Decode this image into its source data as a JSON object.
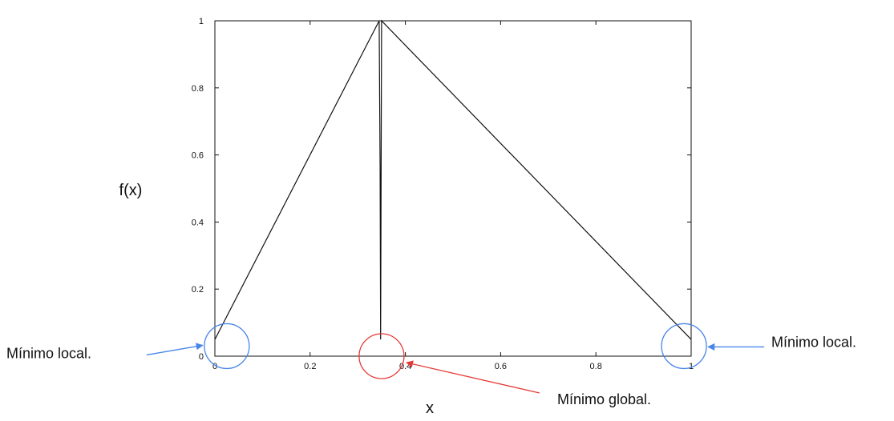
{
  "chart_data": {
    "type": "line",
    "title": "",
    "xlabel": "x",
    "ylabel": "f(x)",
    "xlim": [
      0,
      1
    ],
    "ylim": [
      0,
      1
    ],
    "x_ticks": [
      0,
      0.2,
      0.4,
      0.6,
      0.8,
      1
    ],
    "x_tick_labels": [
      "0",
      "0.2",
      "0.4",
      "0.6",
      "0.8",
      "1"
    ],
    "y_ticks": [
      0,
      0.2,
      0.4,
      0.6,
      0.8,
      1
    ],
    "y_tick_labels": [
      "0",
      "0.2",
      "0.4",
      "0.6",
      "0.8",
      "1"
    ],
    "grid": false,
    "series": [
      {
        "color": "#111111",
        "x": [
          0,
          0.345,
          0.347,
          0.348,
          0.35,
          1
        ],
        "y": [
          0.05,
          1,
          0.55,
          0.05,
          1,
          0.05
        ]
      }
    ],
    "annotations": [
      {
        "text": "Mínimo local.",
        "point": [
          0.025,
          0.03
        ],
        "color": "#4a86e8",
        "side": "left"
      },
      {
        "text": "Mínimo global.",
        "point": [
          0.35,
          0.0
        ],
        "color": "#e53935",
        "side": "bottom-right"
      },
      {
        "text": "Mínimo local.",
        "point": [
          0.985,
          0.03
        ],
        "color": "#4a86e8",
        "side": "right"
      }
    ]
  }
}
